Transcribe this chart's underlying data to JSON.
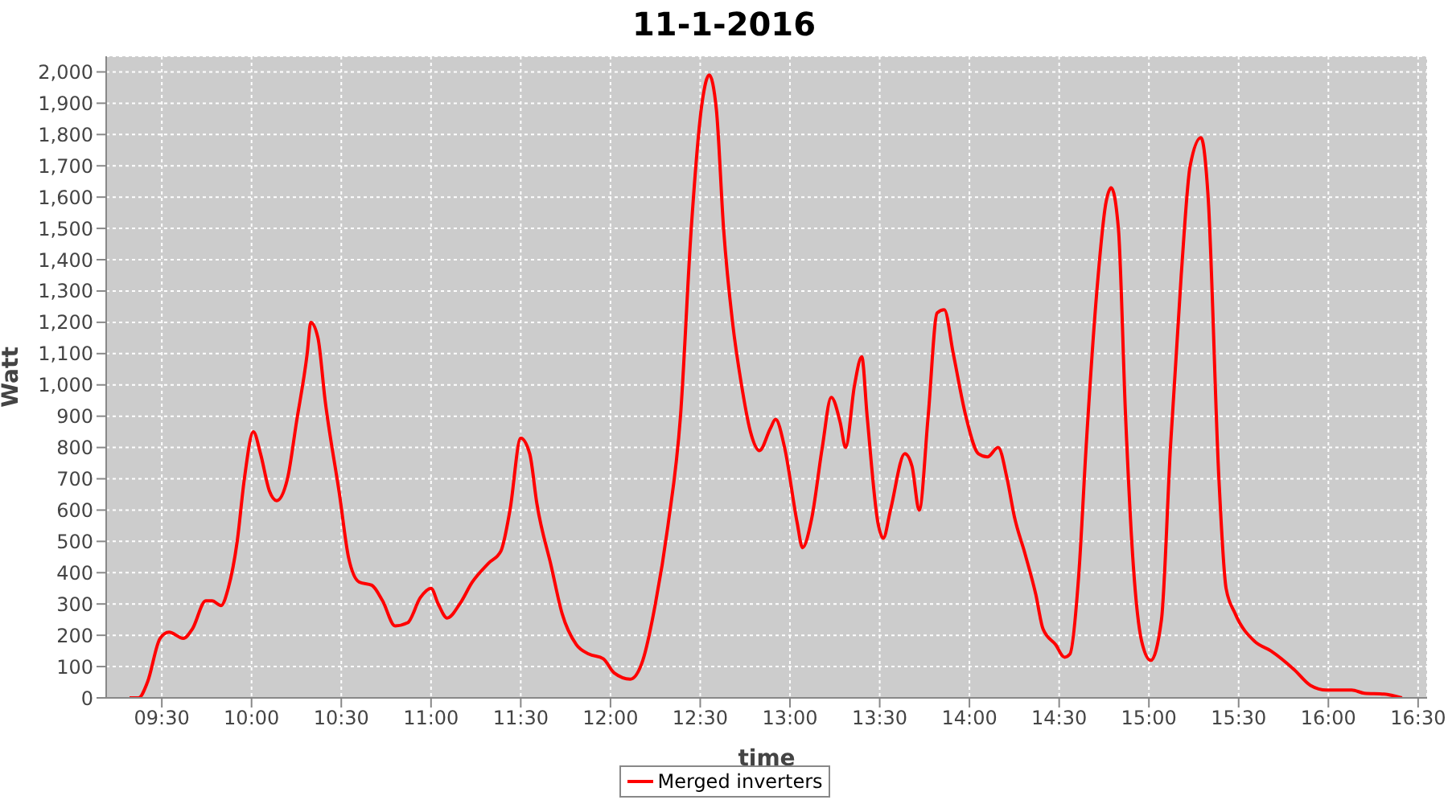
{
  "chart_data": {
    "type": "line",
    "title": "11-1-2016",
    "xlabel": "time",
    "ylabel": "Watt",
    "x": [
      9.32,
      9.37,
      9.42,
      9.49,
      9.54,
      9.62,
      9.67,
      9.745,
      9.78,
      9.83,
      9.87,
      9.92,
      9.96,
      10.01,
      10.05,
      10.1,
      10.14,
      10.2,
      10.25,
      10.31,
      10.33,
      10.37,
      10.41,
      10.49,
      10.54,
      10.6,
      10.67,
      10.73,
      10.8,
      10.87,
      10.94,
      11.0,
      11.04,
      11.09,
      11.16,
      11.23,
      11.32,
      11.39,
      11.44,
      11.5,
      11.55,
      11.59,
      11.67,
      11.73,
      11.81,
      11.88,
      11.96,
      12.02,
      12.11,
      12.18,
      12.25,
      12.32,
      12.39,
      12.45,
      12.51,
      12.55,
      12.59,
      12.63,
      12.68,
      12.73,
      12.78,
      12.83,
      12.89,
      12.92,
      12.97,
      13.04,
      13.07,
      13.12,
      13.18,
      13.23,
      13.28,
      13.31,
      13.36,
      13.4,
      13.43,
      13.49,
      13.52,
      13.56,
      13.64,
      13.68,
      13.72,
      13.77,
      13.82,
      13.86,
      13.91,
      13.98,
      14.05,
      14.1,
      14.16,
      14.21,
      14.25,
      14.31,
      14.37,
      14.41,
      14.48,
      14.53,
      14.56,
      14.61,
      14.65,
      14.71,
      14.76,
      14.79,
      14.83,
      14.87,
      14.91,
      14.96,
      15.01,
      15.07,
      15.12,
      15.18,
      15.23,
      15.29,
      15.33,
      15.39,
      15.43,
      15.48,
      15.59,
      15.68,
      15.81,
      15.9,
      15.99,
      16.13,
      16.2,
      16.31,
      16.41
    ],
    "series": [
      {
        "name": "Merged inverters",
        "color": "#ff0000",
        "values": [
          0,
          0,
          50,
          190,
          210,
          190,
          220,
          310,
          310,
          295,
          350,
          500,
          700,
          850,
          780,
          660,
          630,
          700,
          880,
          1100,
          1200,
          1150,
          950,
          650,
          450,
          370,
          360,
          310,
          230,
          240,
          320,
          350,
          300,
          255,
          300,
          370,
          430,
          470,
          600,
          830,
          780,
          620,
          420,
          270,
          170,
          140,
          125,
          80,
          60,
          120,
          300,
          550,
          900,
          1500,
          1900,
          1990,
          1880,
          1500,
          1200,
          1000,
          850,
          790,
          860,
          890,
          800,
          560,
          480,
          570,
          800,
          960,
          880,
          800,
          1000,
          1090,
          900,
          560,
          510,
          600,
          780,
          740,
          600,
          900,
          1230,
          1240,
          1100,
          900,
          780,
          770,
          800,
          700,
          580,
          460,
          330,
          220,
          170,
          130,
          140,
          400,
          800,
          1300,
          1580,
          1630,
          1500,
          900,
          450,
          180,
          120,
          250,
          800,
          1350,
          1700,
          1790,
          1600,
          700,
          350,
          270,
          180,
          150,
          90,
          40,
          25,
          25,
          15,
          12,
          0
        ]
      }
    ],
    "xlim": [
      9.19,
      16.55
    ],
    "xticks": [
      {
        "value": 9.5,
        "label": "09:30"
      },
      {
        "value": 10,
        "label": "10:00"
      },
      {
        "value": 10.5,
        "label": "10:30"
      },
      {
        "value": 11,
        "label": "11:00"
      },
      {
        "value": 11.5,
        "label": "11:30"
      },
      {
        "value": 12,
        "label": "12:00"
      },
      {
        "value": 12.5,
        "label": "12:30"
      },
      {
        "value": 13,
        "label": "13:00"
      },
      {
        "value": 13.5,
        "label": "13:30"
      },
      {
        "value": 14,
        "label": "14:00"
      },
      {
        "value": 14.5,
        "label": "14:30"
      },
      {
        "value": 15,
        "label": "15:00"
      },
      {
        "value": 15.5,
        "label": "15:30"
      },
      {
        "value": 16,
        "label": "16:00"
      },
      {
        "value": 16.5,
        "label": "16:30"
      }
    ],
    "ylim": [
      0,
      2050
    ],
    "yticks": [
      0,
      100,
      200,
      300,
      400,
      500,
      600,
      700,
      800,
      900,
      {
        "value": 1000,
        "label": "1,000"
      },
      {
        "value": 1100,
        "label": "1,100"
      },
      {
        "value": 1200,
        "label": "1,200"
      },
      {
        "value": 1300,
        "label": "1,300"
      },
      {
        "value": 1400,
        "label": "1,400"
      },
      {
        "value": 1500,
        "label": "1,500"
      },
      {
        "value": 1600,
        "label": "1,600"
      },
      {
        "value": 1700,
        "label": "1,700"
      },
      {
        "value": 1800,
        "label": "1,800"
      },
      {
        "value": 1900,
        "label": "1,900"
      },
      {
        "value": 2000,
        "label": "2,000"
      }
    ],
    "grid": true,
    "legend": "bottom",
    "marker": "none",
    "line_style": "solid"
  }
}
